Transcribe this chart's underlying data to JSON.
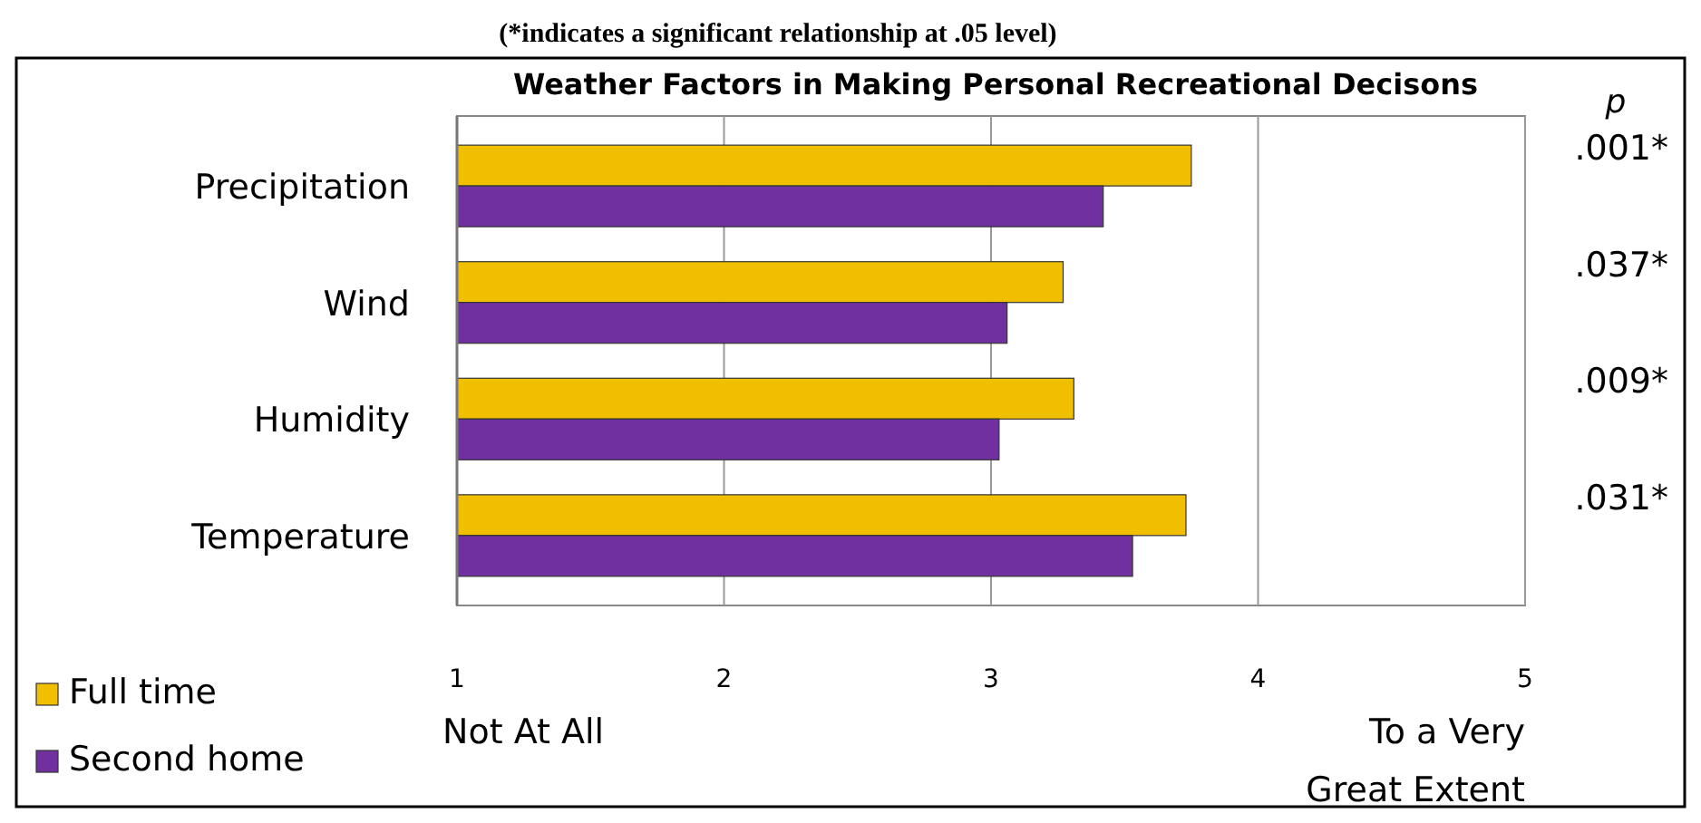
{
  "chart_data": {
    "type": "bar",
    "orientation": "horizontal",
    "title": "Weather Factors in Making Personal Recreational Decisons",
    "categories": [
      "Precipitation",
      "Wind",
      "Humidity",
      "Temperature"
    ],
    "series": [
      {
        "name": "Full time",
        "color": "#f0c000",
        "values": [
          3.75,
          3.27,
          3.31,
          3.73
        ]
      },
      {
        "name": "Second home",
        "color": "#7030a0",
        "values": [
          3.42,
          3.06,
          3.03,
          3.53
        ]
      }
    ],
    "xlim": [
      1,
      5
    ],
    "xticks": [
      1,
      2,
      3,
      4,
      5
    ],
    "grid": "x",
    "legend": "bottom left",
    "annotations": [
      "(*indicates a significant relationship at .05 level)",
      "p",
      ".001*",
      ".037*",
      ".009*",
      ".031*",
      "Not At All",
      "To a Very Great Extent"
    ]
  }
}
